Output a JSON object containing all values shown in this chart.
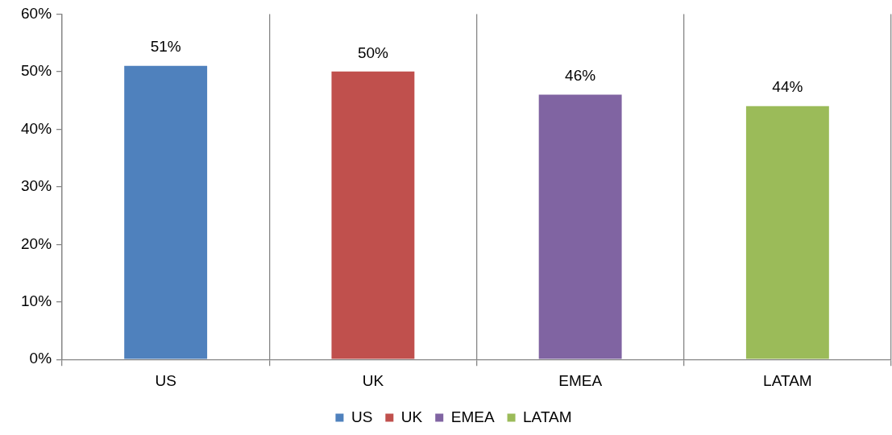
{
  "chart_data": {
    "type": "bar",
    "categories": [
      "US",
      "UK",
      "EMEA",
      "LATAM"
    ],
    "series": [
      {
        "name": "US",
        "color": "#4f81bd",
        "values": [
          51,
          null,
          null,
          null
        ],
        "value_labels": [
          "51%",
          null,
          null,
          null
        ]
      },
      {
        "name": "UK",
        "color": "#c0504d",
        "values": [
          null,
          50,
          null,
          null
        ],
        "value_labels": [
          null,
          "50%",
          null,
          null
        ]
      },
      {
        "name": "EMEA",
        "color": "#8064a2",
        "values": [
          null,
          null,
          46,
          null
        ],
        "value_labels": [
          null,
          null,
          "46%",
          null
        ]
      },
      {
        "name": "LATAM",
        "color": "#9bbb59",
        "values": [
          null,
          null,
          null,
          44
        ],
        "value_labels": [
          null,
          null,
          null,
          "44%"
        ]
      }
    ],
    "ylim": [
      0,
      60
    ],
    "yticks": [
      {
        "value": 0,
        "label": "0%"
      },
      {
        "value": 10,
        "label": "10%"
      },
      {
        "value": 20,
        "label": "20%"
      },
      {
        "value": 30,
        "label": "30%"
      },
      {
        "value": 40,
        "label": "40%"
      },
      {
        "value": 50,
        "label": "50%"
      },
      {
        "value": 60,
        "label": "60%"
      }
    ],
    "grid": "x",
    "legend": "bottom"
  }
}
